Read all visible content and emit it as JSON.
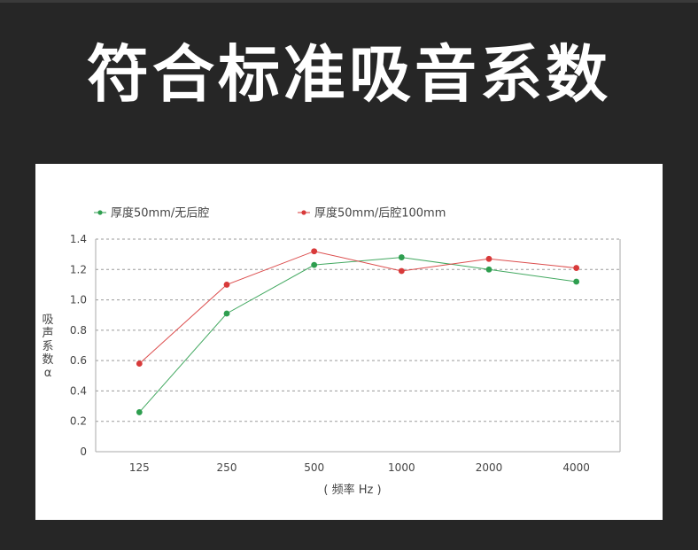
{
  "header": {
    "title": "符合标准吸音系数"
  },
  "chart_data": {
    "type": "line",
    "title": "",
    "categories": [
      "125",
      "250",
      "500",
      "1000",
      "2000",
      "4000"
    ],
    "xlabel": "( 频率 Hz )",
    "ylabel_chars": [
      "吸",
      "声",
      "系",
      "数",
      "α"
    ],
    "ylim": [
      0,
      1.4
    ],
    "yticks": [
      0,
      0.2,
      0.4,
      0.6,
      0.8,
      1.0,
      1.2,
      1.4
    ],
    "ytick_labels": [
      "0",
      "0.2",
      "0.4",
      "0.6",
      "0.8",
      "1.0",
      "1.2",
      "1.4"
    ],
    "grid": "horizontal-dashed",
    "legend_position": "top",
    "series": [
      {
        "name": "厚度50mm/无后腔",
        "color": "#2e9e4f",
        "values": [
          0.26,
          0.91,
          1.23,
          1.28,
          1.2,
          1.12
        ]
      },
      {
        "name": "厚度50mm/后腔100mm",
        "color": "#d83a3a",
        "values": [
          0.58,
          1.1,
          1.32,
          1.19,
          1.27,
          1.21
        ]
      }
    ]
  }
}
